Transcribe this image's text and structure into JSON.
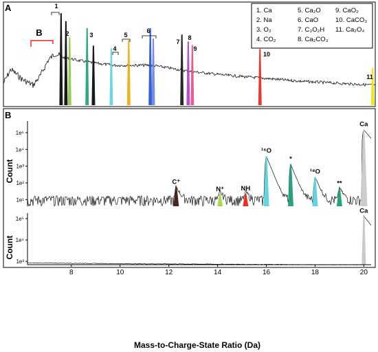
{
  "chart_data": [
    {
      "type": "line",
      "panel_label": "A",
      "description_note": "",
      "legend": [
        {
          "num": "1",
          "name": "Ca"
        },
        {
          "num": "2",
          "name": "Na"
        },
        {
          "num": "3",
          "name": "O2"
        },
        {
          "num": "4",
          "name": "CO2"
        },
        {
          "num": "5",
          "name": "Ca2O"
        },
        {
          "num": "6",
          "name": "CaO"
        },
        {
          "num": "7",
          "name": "C3O2H"
        },
        {
          "num": "8",
          "name": "Ca2CO3"
        },
        {
          "num": "9",
          "name": "CaO2"
        },
        {
          "num": "10",
          "name": "CaCO3"
        },
        {
          "num": "11",
          "name": "Ca2O4"
        }
      ],
      "legend_lines": [
        [
          "1. Ca",
          "5. Ca₂O",
          "9. CaO₂"
        ],
        [
          "2. Na",
          "6. CaO",
          "10. CaCO₃"
        ],
        [
          "3. O₂",
          "7. C₃O₂H",
          "11. Ca₂O₄"
        ],
        [
          "4. CO₂",
          "8. Ca₂CO₃",
          ""
        ]
      ],
      "peak_markers": [
        "1",
        "2",
        "3",
        "4",
        "5",
        "6",
        "7",
        "8",
        "9",
        "10",
        "11"
      ],
      "bracket_label": "B",
      "profile_points": [
        [
          0.0,
          0.78
        ],
        [
          0.02,
          0.64
        ],
        [
          0.05,
          0.74
        ],
        [
          0.08,
          0.8
        ],
        [
          0.1,
          0.7
        ],
        [
          0.12,
          0.55
        ],
        [
          0.14,
          0.48
        ],
        [
          0.16,
          0.52
        ],
        [
          0.2,
          0.55
        ],
        [
          0.25,
          0.58
        ],
        [
          0.3,
          0.6
        ],
        [
          0.4,
          0.6
        ],
        [
          0.5,
          0.66
        ],
        [
          0.6,
          0.7
        ],
        [
          0.7,
          0.73
        ],
        [
          0.8,
          0.76
        ],
        [
          0.9,
          0.78
        ],
        [
          1.0,
          0.8
        ]
      ],
      "peaks": [
        {
          "x": 0.155,
          "h": 0.85,
          "c": "#000000"
        },
        {
          "x": 0.168,
          "h": 0.7,
          "c": "#000000"
        },
        {
          "x": 0.178,
          "h": 0.4,
          "c": "#8cc63f"
        },
        {
          "x": 0.225,
          "h": 0.6,
          "c": "#1a9e77"
        },
        {
          "x": 0.242,
          "h": 0.3,
          "c": "#000000"
        },
        {
          "x": 0.29,
          "h": 0.28,
          "c": "#5bd3e0"
        },
        {
          "x": 0.337,
          "h": 0.42,
          "c": "#f2a900"
        },
        {
          "x": 0.395,
          "h": 0.62,
          "c": "#1f4fd6"
        },
        {
          "x": 0.403,
          "h": 0.45,
          "c": "#6a7fe0"
        },
        {
          "x": 0.48,
          "h": 0.55,
          "c": "#111111"
        },
        {
          "x": 0.497,
          "h": 0.45,
          "c": "#b23dc2"
        },
        {
          "x": 0.508,
          "h": 0.4,
          "c": "#e04f8a"
        },
        {
          "x": 0.69,
          "h": 0.4,
          "c": "#e8231a"
        },
        {
          "x": 0.993,
          "h": 0.22,
          "c": "#f2e000"
        }
      ]
    },
    {
      "type": "line",
      "panel_label": "B",
      "ylabel": "Count",
      "yscale": "log",
      "ylim": [
        4,
        500000
      ],
      "yticks": [
        "1e¹",
        "1e²",
        "1e³",
        "1e⁴",
        "1e⁵"
      ],
      "xlim": [
        6.2,
        20.3
      ],
      "baseline_count": 10,
      "peaks": [
        {
          "label": "C⁺",
          "x": 12.3,
          "count": 55,
          "color": "#3d1a10"
        },
        {
          "label": "N⁺",
          "x": 14.1,
          "count": 20,
          "color": "#a6d64a"
        },
        {
          "label": "NH",
          "x": 15.15,
          "count": 22,
          "color": "#e8231a"
        },
        {
          "label": "¹⁶O",
          "x": 16.0,
          "count": 4000,
          "color": "#5bd3e0"
        },
        {
          "label": "*",
          "x": 17.0,
          "count": 1300,
          "color": "#1a9e77"
        },
        {
          "label": "¹⁸O",
          "x": 18.0,
          "count": 220,
          "color": "#5bd3e0"
        },
        {
          "label": "**",
          "x": 19.0,
          "count": 45,
          "color": "#1a9e77"
        },
        {
          "label": "Ca",
          "x": 20.0,
          "count": 150000,
          "color": "#c8cac4"
        }
      ]
    },
    {
      "type": "line",
      "panel_label": "",
      "ylabel": "Count",
      "yscale": "log",
      "ylim": [
        700,
        180000
      ],
      "yticks": [
        "1e³",
        "1e⁴",
        "1e⁵"
      ],
      "xlabel": "Mass-to-Charge-State Ratio (Da)",
      "xlim": [
        6.2,
        20.3
      ],
      "xticks": [
        "8",
        "10",
        "12",
        "14",
        "16",
        "18",
        "20"
      ],
      "series": [
        {
          "x": [
            6.2,
            8,
            10,
            12,
            14,
            16,
            18,
            19.9
          ],
          "values": [
            850,
            820,
            780,
            760,
            740,
            720,
            700,
            690
          ]
        }
      ],
      "peaks": [
        {
          "label": "Ca",
          "x": 20.0,
          "count": 130000,
          "color": "#c8cac4"
        }
      ]
    }
  ]
}
